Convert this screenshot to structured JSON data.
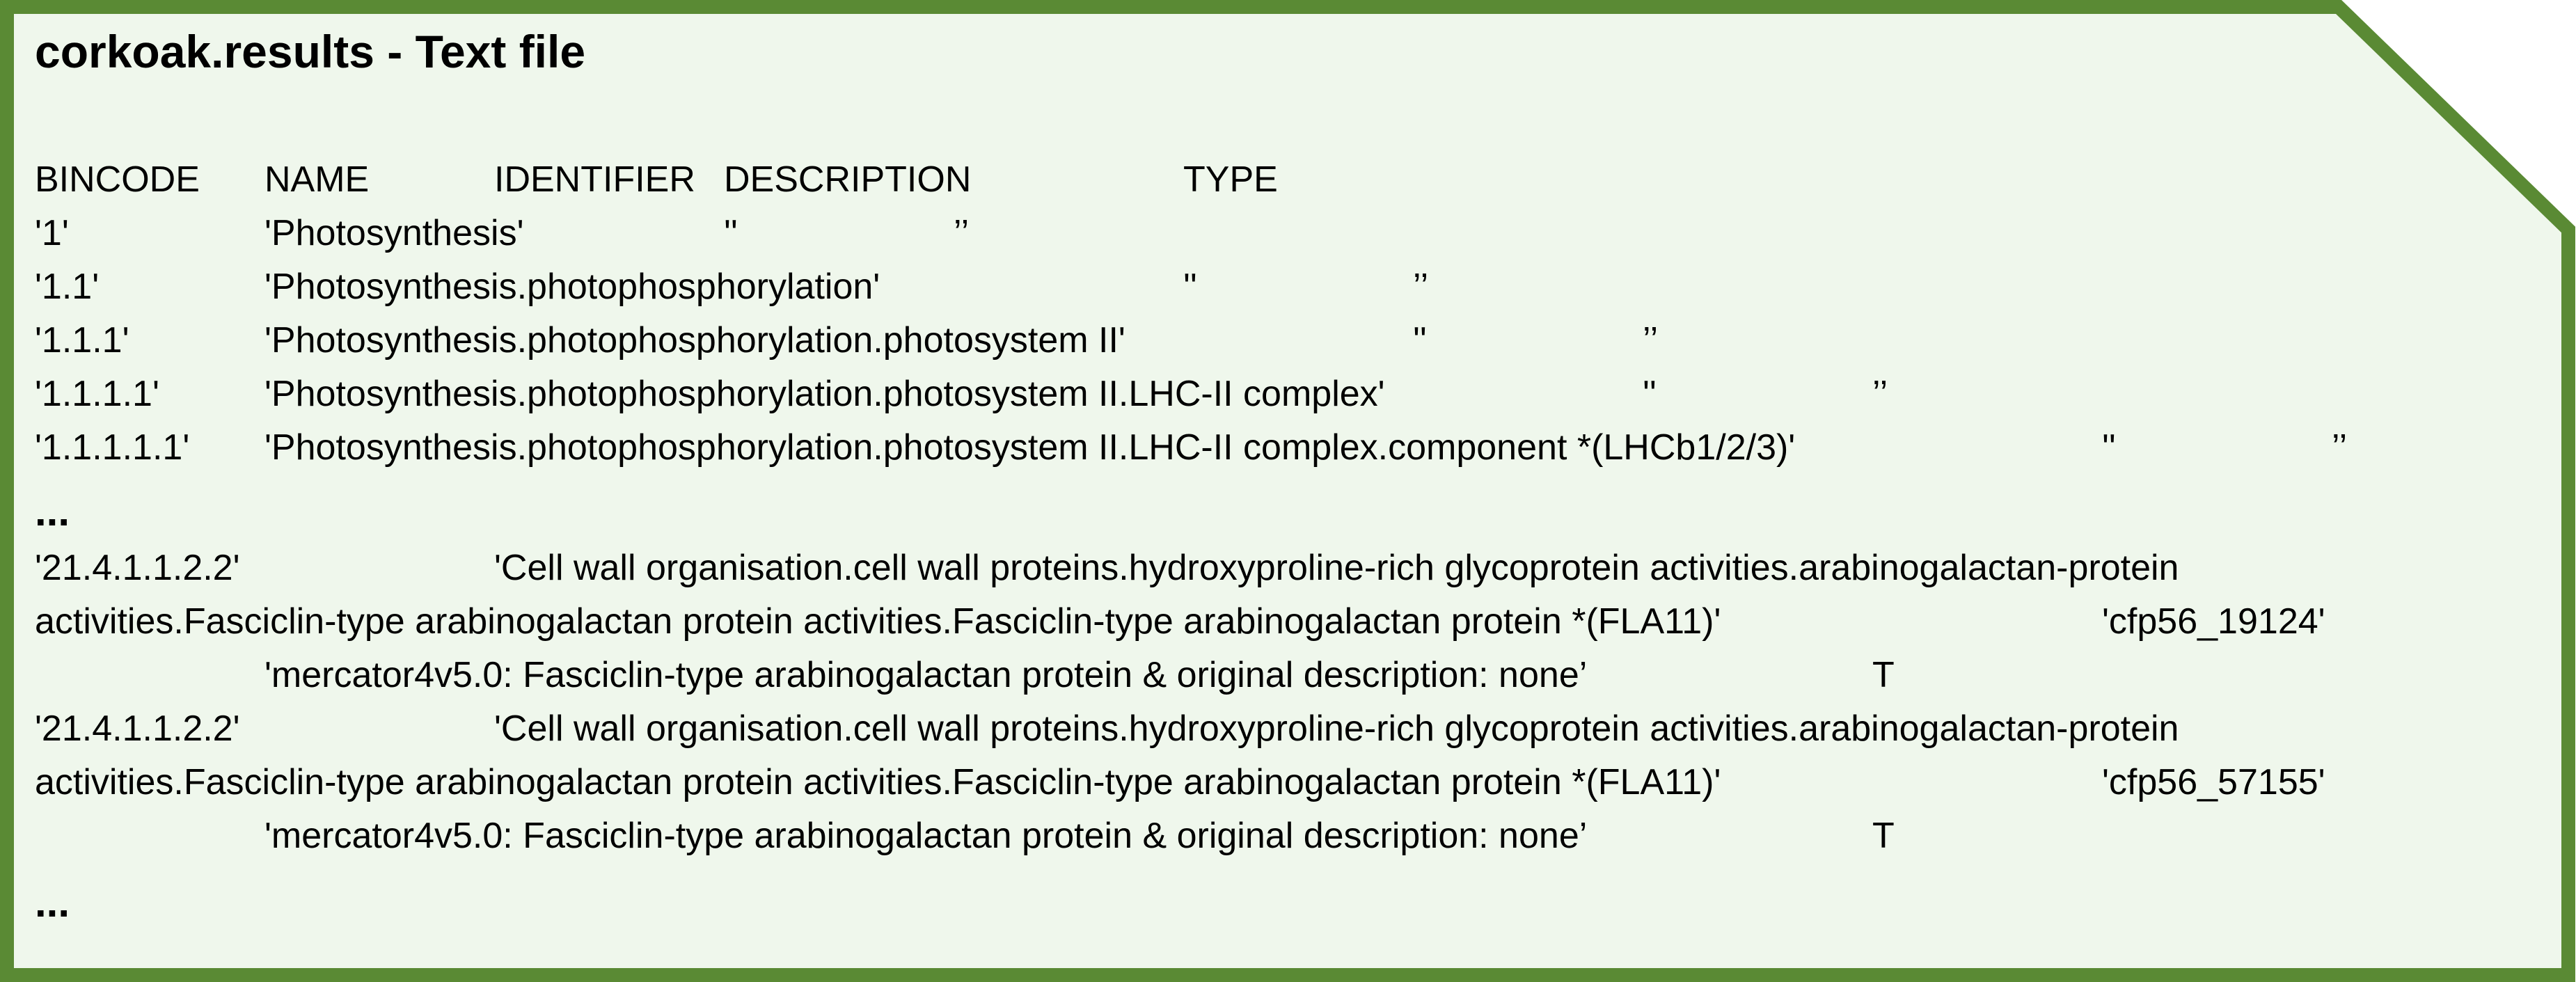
{
  "colors": {
    "border": "#5a8a34",
    "fill": "#eff7ec",
    "text": "#000000"
  },
  "file": {
    "title": "corkoak.results - Text file"
  },
  "table": {
    "headers": [
      "BINCODE",
      "NAME",
      "IDENTIFIER",
      "DESCRIPTION",
      "TYPE"
    ],
    "rows": [
      {
        "bincode": "'1'",
        "name": "'Photosynthesis'",
        "identifier": "''",
        "description": "’’"
      },
      {
        "bincode": "'1.1'",
        "name": "'Photosynthesis.photophosphorylation'",
        "identifier": "''",
        "description": "’’"
      },
      {
        "bincode": "'1.1.1'",
        "name": "'Photosynthesis.photophosphorylation.photosystem II'",
        "identifier": "''",
        "description": "’’"
      },
      {
        "bincode": "'1.1.1.1'",
        "name": "'Photosynthesis.photophosphorylation.photosystem II.LHC-II complex'",
        "identifier": "''",
        "description": "’’"
      },
      {
        "bincode": "'1.1.1.1.1'",
        "name": "'Photosynthesis.photophosphorylation.photosystem II.LHC-II complex.component *(LHCb1/2/3)'",
        "identifier": "''",
        "description": "’’"
      }
    ],
    "ellipsis": "...",
    "long_rows": [
      {
        "bincode": "'21.4.1.1.2.2'",
        "name_part1": "'Cell wall organisation.cell wall proteins.hydroxyproline-rich glycoprotein activities.arabinogalactan-protein",
        "name_part2": "activities.Fasciclin-type arabinogalactan protein activities.Fasciclin-type arabinogalactan protein *(FLA11)'",
        "identifier": "'cfp56_19124'",
        "description": "'mercator4v5.0: Fasciclin-type arabinogalactan protein & original description: none’",
        "type": "T"
      },
      {
        "bincode": "'21.4.1.1.2.2'",
        "name_part1": "'Cell wall organisation.cell wall proteins.hydroxyproline-rich glycoprotein activities.arabinogalactan-protein",
        "name_part2": "activities.Fasciclin-type arabinogalactan protein activities.Fasciclin-type arabinogalactan protein *(FLA11)'",
        "identifier": "'cfp56_57155'",
        "description": "'mercator4v5.0: Fasciclin-type arabinogalactan protein & original description: none’",
        "type": "T"
      }
    ]
  }
}
